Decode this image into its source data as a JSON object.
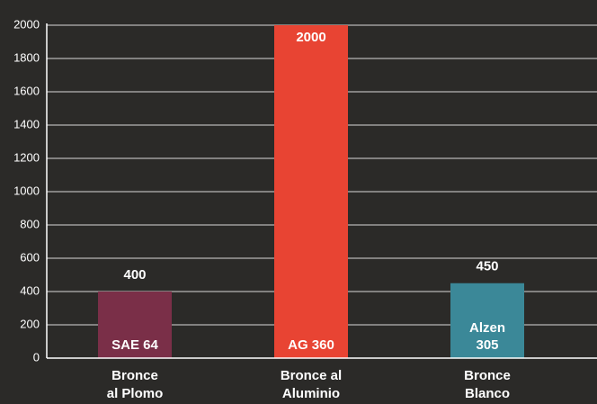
{
  "chart_data": {
    "type": "bar",
    "categories": [
      [
        "Bronce",
        "al Plomo"
      ],
      [
        "Bronce al",
        "Aluminio"
      ],
      [
        "Bronce",
        "Blanco"
      ]
    ],
    "values": [
      400,
      2000,
      450
    ],
    "colors": [
      "#7a2f48",
      "#e84433",
      "#3b8898"
    ],
    "bar_labels": [
      [
        "SAE 64"
      ],
      [
        "AG 360"
      ],
      [
        "Alzen",
        "305"
      ]
    ],
    "ylim": [
      0,
      2000
    ],
    "yticks": [
      0,
      200,
      400,
      600,
      800,
      1000,
      1200,
      1400,
      1600,
      1800,
      2000
    ],
    "grid": true
  }
}
